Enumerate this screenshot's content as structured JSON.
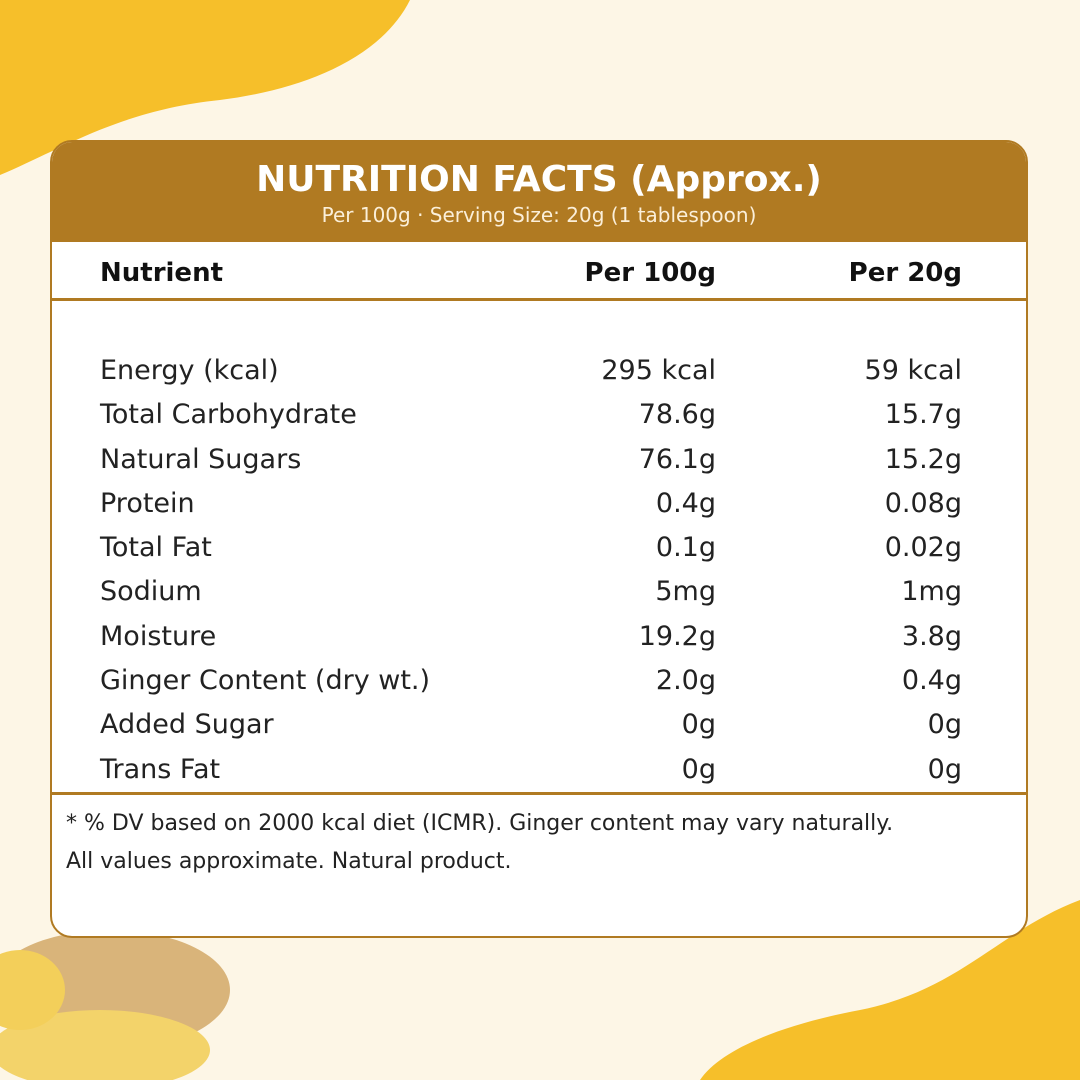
{
  "header": {
    "title": "NUTRITION FACTS (Approx.)",
    "subtitle": "Per 100g · Serving Size: 20g (1 tablespoon)"
  },
  "table": {
    "columns": [
      "Nutrient",
      "Per 100g",
      "Per 20g"
    ],
    "rows": [
      [
        "Energy (kcal)",
        "295 kcal",
        "59 kcal"
      ],
      [
        "Total Carbohydrate",
        "78.6g",
        "15.7g"
      ],
      [
        "Natural Sugars",
        "76.1g",
        "15.2g"
      ],
      [
        "Protein",
        "0.4g",
        "0.08g"
      ],
      [
        "Total Fat",
        "0.1g",
        "0.02g"
      ],
      [
        "Sodium",
        "5mg",
        "1mg"
      ],
      [
        "Moisture",
        "19.2g",
        "3.8g"
      ],
      [
        "Ginger Content (dry wt.)",
        "2.0g",
        "0.4g"
      ],
      [
        "Added Sugar",
        "0g",
        "0g"
      ],
      [
        "Trans Fat",
        "0g",
        "0g"
      ]
    ]
  },
  "footnote": [
    "* % DV based on 2000 kcal diet (ICMR). Ginger content may vary naturally.",
    "All values approximate. Natural product."
  ]
}
